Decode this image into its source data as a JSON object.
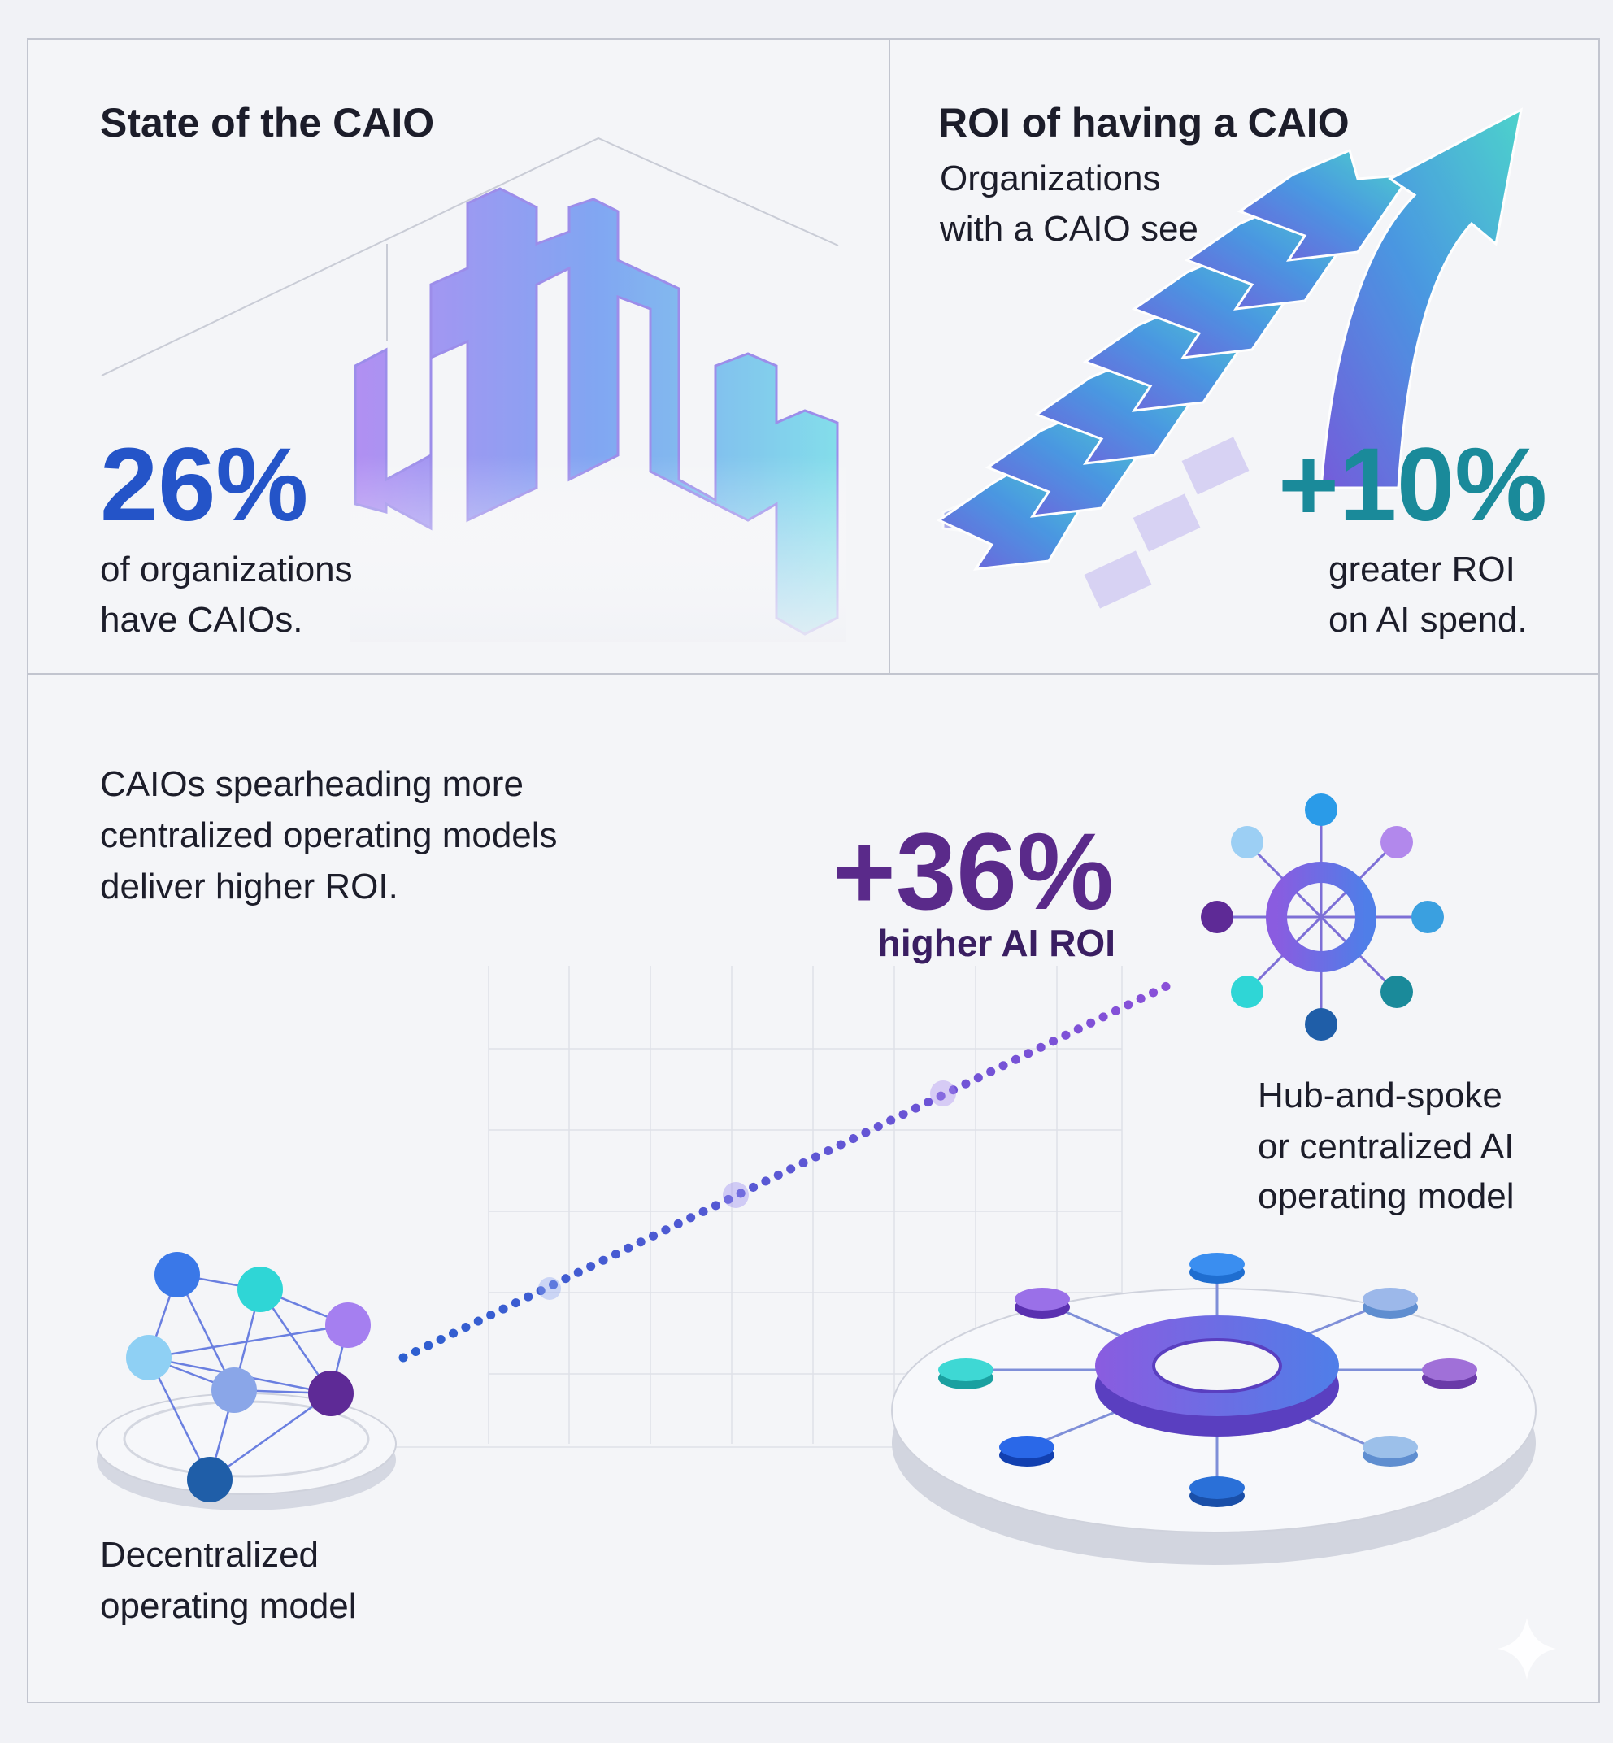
{
  "panels": [
    {
      "title": "State of the CAIO",
      "stat": "26%",
      "caption": [
        "of organizations",
        "have CAIOs."
      ]
    },
    {
      "title": "ROI of having a CAIO",
      "subtitle": [
        "Organizations",
        "with a CAIO see"
      ],
      "stat": "+10%",
      "caption": [
        "greater ROI",
        "on AI spend."
      ]
    }
  ],
  "comparison": {
    "intro": [
      "CAIOs spearheading more",
      "centralized operating models",
      "deliver higher ROI."
    ],
    "stat": "+36%",
    "stat_caption": "higher AI ROI",
    "centralized_label": [
      "Hub-and-spoke",
      "or centralized AI",
      "operating model"
    ],
    "decentralized_label": [
      "Decentralized",
      "operating model"
    ]
  }
}
